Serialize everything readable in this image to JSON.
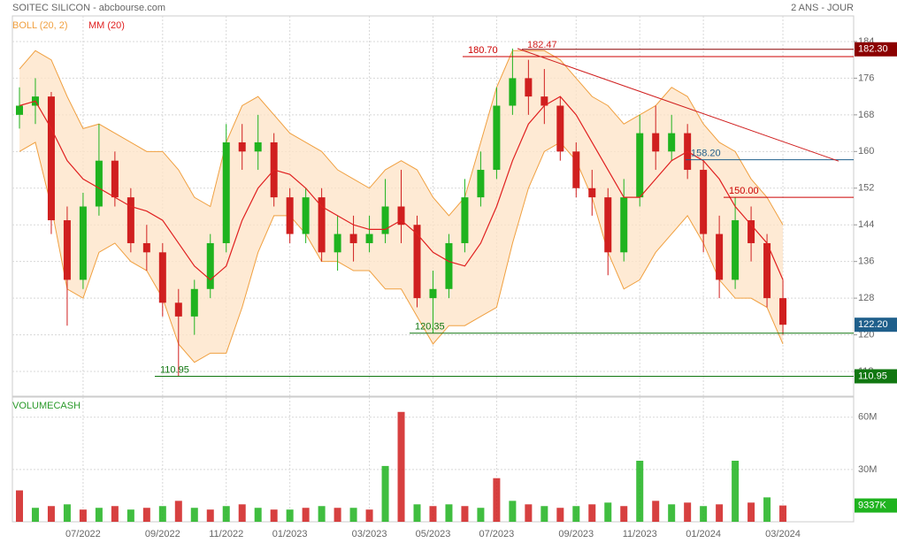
{
  "chart_data": [
    {
      "type": "candlestick",
      "title": "SOITEC SILICON - abcbourse.com",
      "subtitle": "2 ANS - JOUR",
      "categories": [
        null,
        null,
        null,
        null,
        "07/2022",
        null,
        null,
        null,
        null,
        "09/2022",
        null,
        null,
        null,
        "11/2022",
        null,
        null,
        null,
        "01/2023",
        null,
        null,
        null,
        null,
        "03/2023",
        null,
        null,
        null,
        "05/2023",
        null,
        null,
        null,
        "07/2023",
        null,
        null,
        null,
        null,
        "09/2023",
        null,
        null,
        null,
        "11/2023",
        null,
        null,
        null,
        "01/2024",
        null,
        null,
        null,
        null,
        "03/2024"
      ],
      "open": [
        168,
        170,
        172,
        145,
        132,
        148,
        158,
        150,
        140,
        138,
        127,
        124,
        130,
        140,
        162,
        160,
        162,
        150,
        142,
        150,
        138,
        142,
        140,
        142,
        148,
        144,
        128,
        130,
        140,
        150,
        156,
        170,
        176,
        172,
        170,
        160,
        152,
        150,
        138,
        150,
        164,
        160,
        164,
        156,
        142,
        132,
        145,
        140,
        128
      ],
      "high": [
        174,
        176,
        173,
        148,
        151,
        166,
        160,
        152,
        144,
        140,
        130,
        132,
        142,
        166,
        166,
        168,
        164,
        152,
        152,
        152,
        146,
        146,
        146,
        154,
        156,
        146,
        134,
        142,
        154,
        160,
        174,
        182.47,
        180,
        178,
        172,
        162,
        156,
        152,
        154,
        168,
        170,
        168,
        166,
        158,
        146,
        150,
        148,
        142,
        132
      ],
      "low": [
        165,
        166,
        142,
        122,
        130,
        146,
        148,
        138,
        134,
        124,
        110.95,
        120,
        128,
        138,
        156,
        156,
        148,
        140,
        140,
        136,
        134,
        136,
        138,
        140,
        140,
        126,
        120.35,
        128,
        138,
        148,
        154,
        168,
        168,
        166,
        158,
        150,
        146,
        133,
        136,
        148,
        156,
        158,
        154,
        138,
        128,
        130,
        136,
        126,
        120
      ],
      "close": [
        170,
        172,
        145,
        132,
        148,
        158,
        150,
        140,
        138,
        127,
        124,
        130,
        140,
        162,
        160,
        162,
        150,
        142,
        150,
        138,
        142,
        140,
        142,
        148,
        144,
        128,
        130,
        140,
        150,
        156,
        170,
        176,
        172,
        170,
        160,
        152,
        150,
        138,
        150,
        164,
        160,
        164,
        156,
        142,
        132,
        145,
        140,
        128,
        122.2
      ],
      "up_color": "#1fb31f",
      "down_color": "#d01f1f",
      "series": [
        {
          "name": "BOLL (20, 2)",
          "color": "#f0a040",
          "upper": [
            178,
            182,
            180,
            172,
            165,
            166,
            164,
            162,
            160,
            160,
            156,
            150,
            148,
            162,
            170,
            172,
            168,
            164,
            162,
            160,
            156,
            154,
            152,
            156,
            158,
            156,
            150,
            146,
            150,
            162,
            174,
            182,
            182,
            182,
            180,
            176,
            172,
            170,
            166,
            168,
            170,
            174,
            172,
            166,
            162,
            160,
            154,
            150,
            144
          ],
          "lower": [
            160,
            162,
            148,
            130,
            128,
            138,
            140,
            136,
            134,
            128,
            118,
            114,
            116,
            116,
            126,
            138,
            146,
            146,
            142,
            136,
            136,
            134,
            134,
            130,
            130,
            124,
            118,
            122,
            122,
            124,
            126,
            140,
            152,
            160,
            162,
            158,
            150,
            138,
            130,
            132,
            138,
            142,
            146,
            140,
            132,
            128,
            128,
            126,
            118
          ]
        },
        {
          "name": "MM (20)",
          "color": "#e02020",
          "values": [
            170,
            171,
            165,
            158,
            154,
            152,
            150,
            148,
            147,
            145,
            140,
            135,
            132,
            135,
            145,
            152,
            156,
            155,
            152,
            148,
            146,
            144,
            143,
            143,
            145,
            142,
            138,
            136,
            135,
            140,
            148,
            158,
            166,
            170,
            172,
            168,
            162,
            156,
            150,
            150,
            154,
            158,
            160,
            158,
            154,
            148,
            144,
            140,
            132
          ]
        }
      ],
      "ylim": [
        106.8,
        189.2
      ],
      "yticks": [
        112,
        120,
        128,
        136,
        144,
        152,
        160,
        168,
        176,
        184
      ],
      "grid": true,
      "levels": [
        {
          "value": 182.3,
          "label": "182.30",
          "color": "#8b0000",
          "box": true
        },
        {
          "value": 180.7,
          "label": "180.70",
          "color": "#cc0000",
          "box": false
        },
        {
          "value": 158.2,
          "label": "158.20",
          "color": "#1f5f8b",
          "box": false
        },
        {
          "value": 150,
          "label": "150.00",
          "color": "#cc0000",
          "box": false
        },
        {
          "value": 120.35,
          "label": "120.35",
          "color": "#117711",
          "box": false
        },
        {
          "value": 110.95,
          "label": "110.95",
          "color": "#117711",
          "box": true
        }
      ],
      "trendline": {
        "color": "#d01f1f",
        "values": [
          182.47,
          157.9
        ]
      },
      "last_price": {
        "value": 122.2,
        "label": "122.20",
        "color": "#1f5f8b"
      }
    },
    {
      "type": "bar",
      "title": "VOLUMECASH",
      "color": "#d01f1f",
      "values": [
        18000000,
        8000000,
        9000000,
        10000000,
        7000000,
        8000000,
        9000000,
        7000000,
        8000000,
        9000000,
        12000000,
        8000000,
        7000000,
        9000000,
        10000000,
        8000000,
        7000000,
        7000000,
        8000000,
        9000000,
        8000000,
        8000000,
        7000000,
        32000000,
        63000000,
        10000000,
        9000000,
        10000000,
        9000000,
        8000000,
        25000000,
        12000000,
        10000000,
        9000000,
        8000000,
        9000000,
        10000000,
        11000000,
        9000000,
        35000000,
        12000000,
        10000000,
        11000000,
        9000000,
        10000000,
        35000000,
        11000000,
        14000000,
        9337000
      ],
      "value_labels": [
        null,
        null,
        null,
        null,
        null,
        null,
        null,
        null,
        null,
        null,
        null,
        null,
        null,
        null,
        null,
        null,
        null,
        null,
        null,
        null,
        null,
        null,
        null,
        null,
        null,
        null,
        null,
        null,
        null,
        null,
        null,
        null,
        null,
        null,
        null,
        null,
        null,
        null,
        null,
        null,
        null,
        null,
        null,
        null,
        null,
        null,
        null,
        null,
        "9337K"
      ],
      "ylim": [
        0,
        71000000
      ],
      "yticks": [
        {
          "value": 30000000,
          "label": "30M"
        },
        {
          "value": 60000000,
          "label": "60M"
        }
      ]
    }
  ]
}
